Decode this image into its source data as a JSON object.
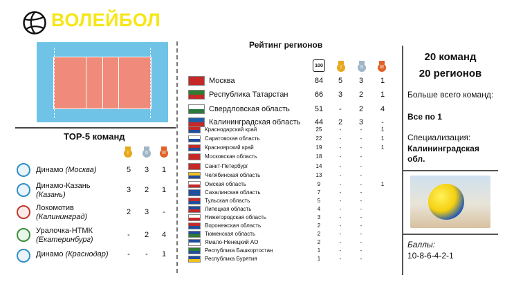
{
  "header": {
    "title": "ВОЛЕЙБОЛ",
    "icon": "volleyball-icon"
  },
  "top5": {
    "title": "TOP-5 команд",
    "teams": [
      {
        "name": "Динамо",
        "city": "(Москва)",
        "gold": "5",
        "silver": "3",
        "bronze": "1"
      },
      {
        "name": "Динамо-Казань",
        "city": "(Казань)",
        "gold": "3",
        "silver": "2",
        "bronze": "1"
      },
      {
        "name": "Локомотив",
        "city": "(Калининград)",
        "gold": "2",
        "silver": "3",
        "bronze": "-"
      },
      {
        "name": "Уралочка-НТМК",
        "city": "(Екатеринбург)",
        "gold": "-",
        "silver": "2",
        "bronze": "4"
      },
      {
        "name": "Динамо",
        "city": "(Краснодар)",
        "gold": "-",
        "silver": "-",
        "bronze": "1"
      }
    ]
  },
  "rating": {
    "title": "Рейтинг регионов",
    "score_icon_label": "100",
    "regions": [
      {
        "name": "Москва",
        "score": "84",
        "gold": "5",
        "silver": "3",
        "bronze": "1"
      },
      {
        "name": "Республика Татарстан",
        "score": "66",
        "gold": "3",
        "silver": "2",
        "bronze": "1"
      },
      {
        "name": "Свердловская область",
        "score": "51",
        "gold": "-",
        "silver": "2",
        "bronze": "4"
      },
      {
        "name": "Калининградская область",
        "score": "44",
        "gold": "2",
        "silver": "3",
        "bronze": "-"
      },
      {
        "name": "Краснодарский край",
        "score": "25",
        "gold": "-",
        "silver": "-",
        "bronze": "1"
      },
      {
        "name": "Саратовская область",
        "score": "22",
        "gold": "-",
        "silver": "-",
        "bronze": "1"
      },
      {
        "name": "Красноярский край",
        "score": "19",
        "gold": "-",
        "silver": "-",
        "bronze": "1"
      },
      {
        "name": "Московская область",
        "score": "18",
        "gold": "-",
        "silver": "-",
        "bronze": ""
      },
      {
        "name": "Санкт-Петербург",
        "score": "14",
        "gold": "-",
        "silver": "-",
        "bronze": ""
      },
      {
        "name": "Челябинская область",
        "score": "13",
        "gold": "-",
        "silver": "-",
        "bronze": ""
      },
      {
        "name": "Омская область",
        "score": "9",
        "gold": "-",
        "silver": "-",
        "bronze": "1"
      },
      {
        "name": "Сахалинская область",
        "score": "7",
        "gold": "-",
        "silver": "-",
        "bronze": ""
      },
      {
        "name": "Тульская область",
        "score": "5",
        "gold": "-",
        "silver": "-",
        "bronze": ""
      },
      {
        "name": "Липецкая область",
        "score": "4",
        "gold": "-",
        "silver": "-",
        "bronze": ""
      },
      {
        "name": "Нижегородская область",
        "score": "3",
        "gold": "-",
        "silver": "-",
        "bronze": ""
      },
      {
        "name": "Воронежская область",
        "score": "2",
        "gold": "-",
        "silver": "-",
        "bronze": ""
      },
      {
        "name": "Тюменская область",
        "score": "2",
        "gold": "-",
        "silver": "-",
        "bronze": ""
      },
      {
        "name": "Ямало-Ненецкий АО",
        "score": "2",
        "gold": "-",
        "silver": "-",
        "bronze": ""
      },
      {
        "name": "Республика Башкортостан",
        "score": "1",
        "gold": "-",
        "silver": "-",
        "bronze": ""
      },
      {
        "name": "Республика Бурятия",
        "score": "1",
        "gold": "-",
        "silver": "-",
        "bronze": ""
      }
    ]
  },
  "summary": {
    "teams": "20 команд",
    "regions": "20 регионов",
    "most_teams_label": "Больше всего команд:",
    "most_teams_value": "Все по 1",
    "specialization_label": "Специализация:",
    "specialization_value": "Калининградская обл.",
    "points_label": "Баллы:",
    "points_value": "10-8-6-4-2-1"
  },
  "colors": {
    "title": "#f6e614",
    "court": "#6fc3e6",
    "court_inner": "#f08a7a",
    "gold": "#e8a81e",
    "silver": "#9fb6c7",
    "bronze": "#e0622a"
  }
}
